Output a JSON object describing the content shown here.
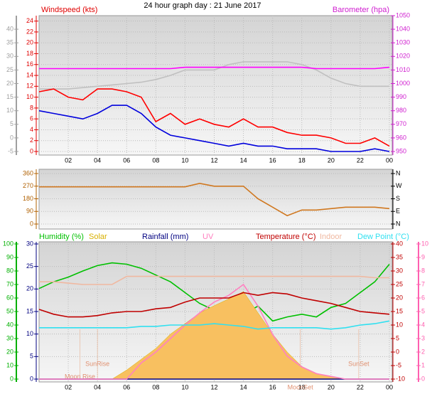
{
  "chart_data": [
    {
      "type": "line",
      "title": "24 hour graph day : 21 June 2017",
      "ylabel": "Windspeed (kts)",
      "y2label": "Barometer (hpa)",
      "x": [
        0,
        1,
        2,
        3,
        4,
        5,
        6,
        7,
        8,
        9,
        10,
        11,
        12,
        13,
        14,
        15,
        16,
        17,
        18,
        19,
        20,
        21,
        22,
        23,
        24
      ],
      "xlim": [
        0,
        24
      ],
      "xticks": [
        {
          "value": 2,
          "label": "02"
        },
        {
          "value": 4,
          "label": "04"
        },
        {
          "value": 6,
          "label": "06"
        },
        {
          "value": 8,
          "label": "08"
        },
        10,
        12,
        14,
        16,
        18,
        20,
        22,
        {
          "value": 24,
          "label": "00"
        }
      ],
      "ylim": [
        0,
        25
      ],
      "yticks": [
        0,
        2,
        4,
        6,
        8,
        10,
        12,
        14,
        16,
        18,
        20,
        22,
        24
      ],
      "ycolor": "#e00000",
      "y2lim": [
        950,
        1050
      ],
      "y2ticks": [
        950,
        960,
        970,
        980,
        990,
        1000,
        1010,
        1020,
        1030,
        1040,
        1050
      ],
      "y2color": "#d020d0",
      "y3lim": [
        -5,
        45
      ],
      "y3ticks": [
        -5,
        0,
        5,
        10,
        15,
        20,
        25,
        30,
        35,
        40
      ],
      "y3color": "#a0a0a0",
      "grid": true,
      "series": [
        {
          "color": "#c0c0c0",
          "axis": "y3",
          "values": [
            18,
            18,
            18,
            18.5,
            19,
            19.5,
            20,
            20.5,
            21.5,
            23,
            25,
            25,
            25,
            27,
            28,
            28,
            28,
            28,
            27,
            25,
            22,
            20,
            19,
            19,
            19
          ]
        },
        {
          "color": "#ff00ff",
          "axis": "y2",
          "values": [
            1011,
            1011,
            1011,
            1011,
            1011,
            1011,
            1011,
            1011,
            1011,
            1011,
            1012,
            1012,
            1012,
            1012,
            1012,
            1012,
            1012,
            1012,
            1012,
            1011,
            1011,
            1011,
            1011,
            1011,
            1012
          ]
        },
        {
          "color": "#ff0000",
          "axis": "y",
          "values": [
            11,
            11.5,
            10,
            9.5,
            11.5,
            11.5,
            11,
            10,
            5.5,
            7,
            5,
            6,
            5,
            4.5,
            6,
            4.5,
            4.5,
            3.5,
            3,
            3,
            2.5,
            1.5,
            1.5,
            2.5,
            1
          ]
        },
        {
          "color": "#0000dd",
          "axis": "y",
          "values": [
            7.5,
            7,
            6.5,
            6,
            7,
            8.5,
            8.5,
            7,
            4.5,
            3,
            2.5,
            2,
            1.5,
            1,
            1.5,
            1,
            1,
            0.5,
            0.5,
            0.5,
            0,
            0,
            0,
            0.5,
            0
          ]
        }
      ]
    },
    {
      "type": "line",
      "x": [
        0,
        1,
        2,
        3,
        4,
        5,
        6,
        7,
        8,
        9,
        10,
        11,
        12,
        13,
        14,
        15,
        16,
        17,
        18,
        19,
        20,
        21,
        22,
        23,
        24
      ],
      "xlim": [
        0,
        24
      ],
      "ylim": [
        0,
        360
      ],
      "yticks": [
        0,
        90,
        180,
        270,
        360
      ],
      "ycolor": "#b06000",
      "y2lim": [
        0,
        360
      ],
      "y2ticks": [
        {
          "value": 0,
          "label": "N"
        },
        {
          "value": 90,
          "label": "E"
        },
        {
          "value": 180,
          "label": "S"
        },
        {
          "value": 270,
          "label": "W"
        },
        {
          "value": 360,
          "label": "N"
        }
      ],
      "y2color": "#000000",
      "grid": true,
      "series": [
        {
          "color": "#d07820",
          "axis": "y",
          "values": [
            265,
            265,
            265,
            265,
            265,
            265,
            265,
            265,
            265,
            265,
            265,
            290,
            270,
            270,
            270,
            180,
            120,
            60,
            100,
            100,
            110,
            120,
            120,
            120,
            110
          ]
        }
      ]
    },
    {
      "type": "line",
      "x": [
        0,
        1,
        2,
        3,
        4,
        5,
        6,
        7,
        8,
        9,
        10,
        11,
        12,
        13,
        14,
        15,
        16,
        17,
        18,
        19,
        20,
        21,
        22,
        23,
        24
      ],
      "xlim": [
        0,
        24
      ],
      "xticks": [
        {
          "value": 2,
          "label": "02"
        },
        {
          "value": 4,
          "label": "04"
        },
        {
          "value": 6,
          "label": "06"
        },
        {
          "value": 8,
          "label": "08"
        },
        10,
        12,
        14,
        16,
        18,
        20,
        22,
        {
          "value": 24,
          "label": "00"
        }
      ],
      "ylim": [
        0,
        30
      ],
      "yticks": [
        0,
        5,
        10,
        15,
        20,
        25,
        30
      ],
      "ycolor": "#000080",
      "y2lim": [
        -10,
        40
      ],
      "y2ticks": [
        -10,
        -5,
        0,
        5,
        10,
        15,
        20,
        25,
        30,
        35,
        40
      ],
      "y2color": "#c00000",
      "y3lim": [
        0,
        100
      ],
      "y3ticks": [
        0,
        10,
        20,
        30,
        40,
        50,
        60,
        70,
        80,
        90,
        100
      ],
      "y3color": "#00b000",
      "y4lim": [
        0,
        10
      ],
      "y4ticks": [
        0,
        1,
        2,
        3,
        4,
        5,
        6,
        7,
        8,
        9,
        10
      ],
      "y4color": "#ff60b0",
      "grid": true,
      "annotations": [
        {
          "text": "Moon Rise",
          "x": 2.8
        },
        {
          "text": "SunRise",
          "x": 4
        },
        {
          "text": "MoonSet",
          "x": 17.9
        },
        {
          "text": "SunSet",
          "x": 21.9
        }
      ],
      "series": [
        {
          "name": "Humidity (%)",
          "color": "#00c000",
          "axis": "y3",
          "values": [
            67,
            72,
            75.5,
            80,
            84,
            86,
            85,
            82,
            77,
            72,
            64,
            56,
            51,
            46,
            48,
            54,
            43,
            46,
            48,
            46,
            53,
            56,
            64,
            72,
            85
          ]
        },
        {
          "name": "Solar",
          "color": "#d8b000",
          "fill": "#f8c060",
          "axis": "y",
          "values": [
            0,
            0,
            0,
            0,
            0,
            0,
            2,
            4.4,
            6.8,
            10,
            12.3,
            14.7,
            16.3,
            17.8,
            19.4,
            14.7,
            10,
            6,
            2.8,
            1.3,
            0.5,
            0,
            0,
            0,
            0
          ]
        },
        {
          "name": "Rainfall (mm)",
          "color": "#000080",
          "axis": "y",
          "values": [
            0,
            0,
            0,
            0,
            0,
            0,
            0,
            0,
            0,
            0,
            0,
            0,
            0,
            0,
            0,
            0,
            0,
            0,
            0,
            0,
            0,
            0,
            0,
            0,
            0
          ]
        },
        {
          "name": "UV",
          "color": "#ff80c0",
          "axis": "y4",
          "values": [
            0,
            0,
            0,
            0,
            0,
            0,
            0,
            1.2,
            2,
            3,
            4,
            4.9,
            5.7,
            6.2,
            7,
            5.4,
            3.3,
            1.7,
            0.9,
            0.4,
            0.2,
            0,
            0,
            0,
            0
          ]
        },
        {
          "name": "Temperature (°C)",
          "color": "#c00000",
          "axis": "y2",
          "values": [
            15.8,
            14,
            13,
            13,
            13.5,
            14.5,
            15,
            15,
            16,
            16.5,
            18.5,
            20,
            20,
            20,
            22,
            21,
            22,
            21.5,
            20,
            19,
            18,
            16.5,
            15,
            14.5,
            14
          ]
        },
        {
          "name": "Indoor",
          "color": "#f0b8a0",
          "axis": "y2",
          "values": [
            26,
            26,
            25.5,
            25,
            25,
            25,
            28,
            28,
            28,
            28,
            28,
            28,
            28,
            28,
            28,
            28,
            28,
            28,
            28,
            28,
            28,
            28,
            28,
            27.5,
            27.5
          ]
        },
        {
          "name": "Dew Point (°C)",
          "color": "#30e0f0",
          "axis": "y2",
          "values": [
            9,
            9,
            9,
            9,
            9,
            9,
            9,
            9.5,
            9.5,
            10,
            10,
            10,
            10.5,
            10,
            9.5,
            8.5,
            9,
            9,
            9,
            9,
            8.5,
            9,
            10,
            10.5,
            11.5
          ]
        }
      ]
    }
  ]
}
